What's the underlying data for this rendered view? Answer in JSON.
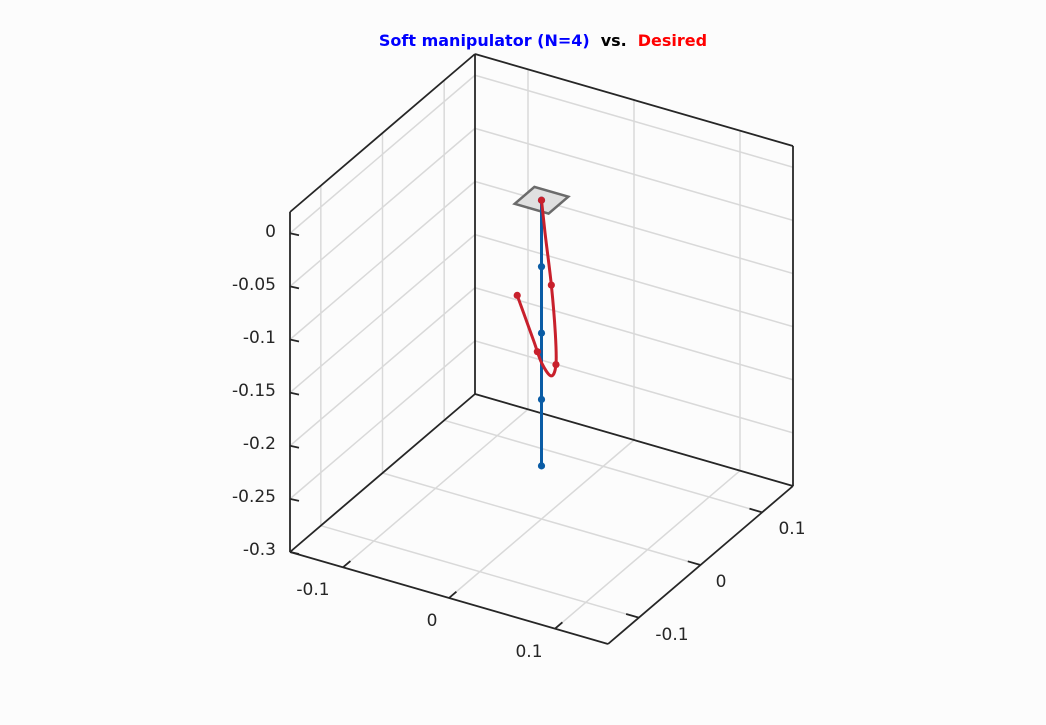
{
  "chart_data": {
    "type": "line",
    "title_parts": [
      {
        "text": "Soft manipulator (N=4)",
        "color": "#0000ff"
      },
      {
        "text": "vs.",
        "color": "#000000"
      },
      {
        "text": "Desired",
        "color": "#ff0000"
      }
    ],
    "x_ticks": [
      "-0.1",
      "0",
      "0.1"
    ],
    "y_ticks": [
      "-0.1",
      "0",
      "0.1"
    ],
    "z_ticks": [
      "0",
      "-0.05",
      "-0.1",
      "-0.15",
      "-0.2",
      "-0.25",
      "-0.3"
    ],
    "xlim": [
      -0.15,
      0.15
    ],
    "ylim": [
      -0.15,
      0.15
    ],
    "zlim": [
      -0.3,
      0.02
    ],
    "grid": true,
    "series": [
      {
        "color": "#0a5ca5",
        "line": [
          [
            0,
            0,
            0
          ],
          [
            0,
            0,
            -0.25
          ]
        ],
        "markers": [
          [
            0,
            0,
            0
          ],
          [
            0,
            0,
            -0.0625
          ],
          [
            0,
            0,
            -0.125
          ],
          [
            0,
            0,
            -0.1875
          ],
          [
            0,
            0,
            -0.25
          ]
        ]
      },
      {
        "color": "#c8202c",
        "line": [
          [
            0,
            0,
            0
          ],
          [
            0.0085,
            -0.0085,
            -0.026
          ],
          [
            0.0222,
            -0.0222,
            -0.0624
          ],
          [
            0.0312,
            -0.0312,
            -0.1009
          ],
          [
            0.0326,
            -0.0326,
            -0.1291
          ],
          [
            0.0217,
            -0.0217,
            -0.1483
          ],
          [
            0.0006,
            -0.0006,
            -0.1529
          ],
          [
            -0.0171,
            0.0171,
            -0.1464
          ],
          [
            -0.0402,
            0.0402,
            -0.1378
          ],
          [
            -0.0548,
            0.0548,
            -0.1325
          ]
        ],
        "markers": [
          [
            0,
            0,
            0
          ],
          [
            0.0222,
            -0.0222,
            -0.0624
          ],
          [
            0.0326,
            -0.0326,
            -0.1291
          ],
          [
            -0.0093,
            0.0093,
            -0.1498
          ],
          [
            -0.0548,
            0.0548,
            -0.1325
          ]
        ]
      }
    ],
    "base_plate_color": "#e0e0e0",
    "box_color": "#262626"
  }
}
